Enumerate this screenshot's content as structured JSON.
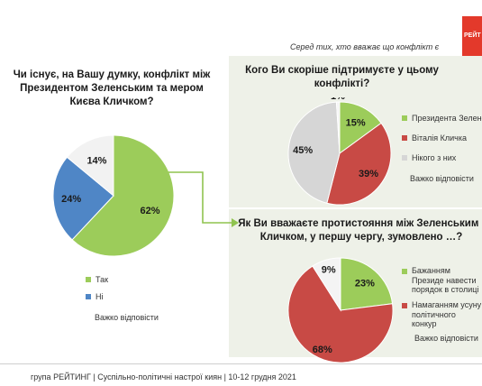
{
  "header": {
    "subtitle": "Серед тих, хто вважає що конфлікт є",
    "brand": "РЕЙТ"
  },
  "q1": {
    "title": "Чи існує, на Вашу думку, конфлікт між Президентом Зеленським та мером Києва Кличком?",
    "legend": [
      "Так",
      "Ні"
    ],
    "note": "Важко відповісти"
  },
  "q2": {
    "title": "Кого Ви скоріше підтримуєте у цьому конфлікті?",
    "legend": [
      "Президента Зеленс",
      "Віталія Кличка",
      "Нікого з них"
    ],
    "note": "Важко відповісти"
  },
  "q3": {
    "title": "Як Ви вважаєте протистояння між Зеленським і Кличком, у першу чергу, зумовлено …?",
    "legend": [
      "Бажанням Президе навести порядок в столиці",
      "Намаганням усуну політичного конкур"
    ],
    "note": "Важко відповісти"
  },
  "footer": {
    "text": "група РЕЙТИНГ | Суспільно-політичні настрої киян | 10-12 грудня 2021"
  },
  "chart_data": [
    {
      "type": "pie",
      "title": "Чи існує, на Вашу думку, конфлікт між Президентом Зеленським та мером Києва Кличком?",
      "categories": [
        "Так",
        "Ні",
        "Важко відповісти"
      ],
      "values": [
        62,
        24,
        14
      ],
      "labels": [
        "62%",
        "24%",
        "14%"
      ],
      "colors": [
        "#9ccc5a",
        "#4f86c6",
        "#f2f2f2"
      ]
    },
    {
      "type": "pie",
      "title": "Кого Ви скоріше підтримуєте у цьому конфлікті?",
      "categories": [
        "Президента Зеленс",
        "Віталія Кличка",
        "Нікого з них",
        "Важко відповісти"
      ],
      "values": [
        15,
        39,
        45,
        1
      ],
      "labels": [
        "15%",
        "39%",
        "45%",
        "1%"
      ],
      "colors": [
        "#9ccc5a",
        "#c84a45",
        "#d6d6d6",
        "#f4f4f4"
      ]
    },
    {
      "type": "pie",
      "title": "Як Ви вважаєте протистояння між Зеленським і Кличком, у першу чергу, зумовлено …?",
      "categories": [
        "Бажанням Президе навести порядок в столиці",
        "Намаганням усуну політичного конкур",
        "Важко відповісти"
      ],
      "values": [
        23,
        68,
        9
      ],
      "labels": [
        "23%",
        "68%",
        "9%"
      ],
      "colors": [
        "#9ccc5a",
        "#c84a45",
        "#f4f4f4"
      ]
    }
  ]
}
